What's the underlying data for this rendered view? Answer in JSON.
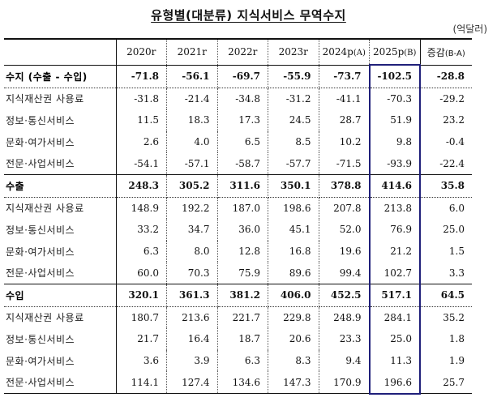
{
  "title": "유형별(대분류) 지식서비스 무역수지",
  "unit": "(억달러)",
  "chart_data": {
    "type": "table",
    "title": "유형별(대분류) 지식서비스 무역수지",
    "unit": "억달러",
    "columns": [
      "",
      "2020r",
      "2021r",
      "2022r",
      "2023r",
      "2024p(A)",
      "2025p(B)",
      "증감(B-A)"
    ],
    "highlighted_column": "2025p(B)",
    "rows": [
      {
        "label": "수지 (수출 - 수입)",
        "bold": true,
        "values": [
          "-71.8",
          "-56.1",
          "-69.7",
          "-55.9",
          "-73.7",
          "-102.5",
          "-28.8"
        ]
      },
      {
        "label": "지식재산권 사용료",
        "values": [
          "-31.8",
          "-21.4",
          "-34.8",
          "-31.2",
          "-41.1",
          "-70.3",
          "-29.2"
        ]
      },
      {
        "label": "정보·통신서비스",
        "values": [
          "11.5",
          "18.3",
          "17.3",
          "24.5",
          "28.7",
          "51.9",
          "23.2"
        ]
      },
      {
        "label": "문화·여가서비스",
        "values": [
          "2.6",
          "4.0",
          "6.5",
          "8.5",
          "10.2",
          "9.8",
          "-0.4"
        ]
      },
      {
        "label": "전문·사업서비스",
        "values": [
          "-54.1",
          "-57.1",
          "-58.7",
          "-57.7",
          "-71.5",
          "-93.9",
          "-22.4"
        ]
      },
      {
        "label": "수출",
        "bold": true,
        "values": [
          "248.3",
          "305.2",
          "311.6",
          "350.1",
          "378.8",
          "414.6",
          "35.8"
        ]
      },
      {
        "label": "지식재산권 사용료",
        "values": [
          "148.9",
          "192.2",
          "187.0",
          "198.6",
          "207.8",
          "213.8",
          "6.0"
        ]
      },
      {
        "label": "정보·통신서비스",
        "values": [
          "33.2",
          "34.7",
          "36.0",
          "45.1",
          "52.0",
          "76.9",
          "25.0"
        ]
      },
      {
        "label": "문화·여가서비스",
        "values": [
          "6.3",
          "8.0",
          "12.8",
          "16.8",
          "19.6",
          "21.2",
          "1.5"
        ]
      },
      {
        "label": "전문·사업서비스",
        "values": [
          "60.0",
          "70.3",
          "75.9",
          "89.6",
          "99.4",
          "102.7",
          "3.3"
        ]
      },
      {
        "label": "수입",
        "bold": true,
        "values": [
          "320.1",
          "361.3",
          "381.2",
          "406.0",
          "452.5",
          "517.1",
          "64.5"
        ]
      },
      {
        "label": "지식재산권 사용료",
        "values": [
          "180.7",
          "213.6",
          "221.7",
          "229.8",
          "248.9",
          "284.1",
          "35.2"
        ]
      },
      {
        "label": "정보·통신서비스",
        "values": [
          "21.7",
          "16.4",
          "18.7",
          "20.6",
          "23.3",
          "25.0",
          "1.8"
        ]
      },
      {
        "label": "문화·여가서비스",
        "values": [
          "3.6",
          "3.9",
          "6.3",
          "8.3",
          "9.4",
          "11.3",
          "1.9"
        ]
      },
      {
        "label": "전문·사업서비스",
        "values": [
          "114.1",
          "127.4",
          "134.6",
          "147.3",
          "170.9",
          "196.6",
          "25.7"
        ]
      }
    ]
  },
  "header": {
    "c1": "2020r",
    "c2": "2021r",
    "c3": "2022r",
    "c4": "2023r",
    "c5_main": "2024p",
    "c5_sub": "(A)",
    "c6_main": "2025p",
    "c6_sub": "(B)",
    "c7_main": "증감",
    "c7_sub": "(B-A)"
  }
}
